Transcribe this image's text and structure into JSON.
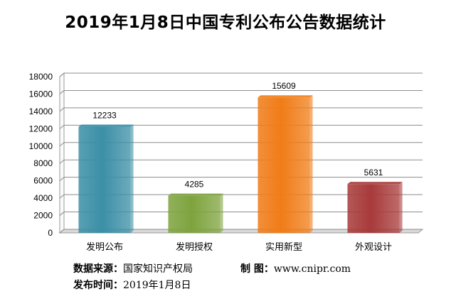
{
  "chart_data": {
    "type": "bar",
    "title": "2019年1月8日中国专利公布公告数据统计",
    "categories": [
      "发明公布",
      "发明授权",
      "实用新型",
      "外观设计"
    ],
    "values": [
      12233,
      4285,
      15609,
      5631
    ],
    "ylim": [
      0,
      18000
    ],
    "yticks": [
      0,
      2000,
      4000,
      6000,
      8000,
      10000,
      12000,
      14000,
      16000,
      18000
    ],
    "grid": true,
    "legend": "none",
    "colors": [
      "#3b8fa6",
      "#7ea33e",
      "#f07c17",
      "#a83a3a"
    ]
  },
  "footer": {
    "source_label": "数据来源：",
    "source_value": "国家知识产权局",
    "maker_label": "制  图：",
    "maker_value": "www.cnipr.com",
    "date_label": "发布时间：",
    "date_value": "2019年1月8日"
  }
}
